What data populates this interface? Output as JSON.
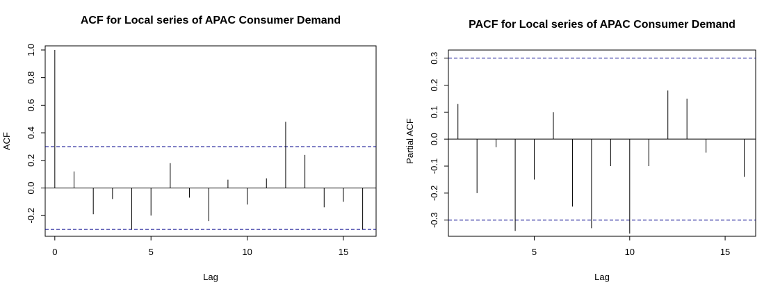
{
  "chart_data": [
    {
      "type": "bar",
      "title": "ACF for Local series of APAC Consumer Demand",
      "xlabel": "Lag",
      "ylabel": "ACF",
      "x": [
        0,
        1,
        2,
        3,
        4,
        5,
        6,
        7,
        8,
        9,
        10,
        11,
        12,
        13,
        14,
        15,
        16
      ],
      "values": [
        1.0,
        0.12,
        -0.19,
        -0.08,
        -0.3,
        -0.2,
        0.18,
        -0.07,
        -0.24,
        0.06,
        -0.12,
        0.07,
        0.48,
        0.24,
        -0.14,
        -0.1,
        -0.3
      ],
      "ci": 0.3,
      "xlim": [
        -0.5,
        16.7
      ],
      "ylim": [
        -0.35,
        1.03
      ],
      "xticks": [
        0,
        5,
        10,
        15
      ],
      "xtick_labels": [
        "0",
        "5",
        "10",
        "15"
      ],
      "yticks": [
        -0.2,
        0.0,
        0.2,
        0.4,
        0.6,
        0.8,
        1.0
      ],
      "ytick_labels": [
        "-0.2",
        "0.0",
        "0.2",
        "0.4",
        "0.6",
        "0.8",
        "1.0"
      ],
      "colors": {
        "lines": "#000000",
        "ci": "#00008b"
      }
    },
    {
      "type": "bar",
      "title": "PACF for Local series of APAC Consumer Demand",
      "xlabel": "Lag",
      "ylabel": "Partial ACF",
      "x": [
        1,
        2,
        3,
        4,
        5,
        6,
        7,
        8,
        9,
        10,
        11,
        12,
        13,
        14,
        15,
        16
      ],
      "values": [
        0.13,
        -0.2,
        -0.03,
        -0.34,
        -0.15,
        0.1,
        -0.25,
        -0.33,
        -0.1,
        -0.35,
        -0.1,
        0.18,
        0.15,
        -0.05,
        0.0,
        -0.14
      ],
      "ci": 0.3,
      "xlim": [
        0.5,
        16.6
      ],
      "ylim": [
        -0.36,
        0.33
      ],
      "xticks": [
        5,
        10,
        15
      ],
      "xtick_labels": [
        "5",
        "10",
        "15"
      ],
      "yticks": [
        -0.3,
        -0.2,
        -0.1,
        0.0,
        0.1,
        0.2,
        0.3
      ],
      "ytick_labels": [
        "-0.3",
        "-0.2",
        "-0.1",
        "0.0",
        "0.1",
        "0.2",
        "0.3"
      ],
      "colors": {
        "lines": "#000000",
        "ci": "#00008b"
      }
    }
  ]
}
